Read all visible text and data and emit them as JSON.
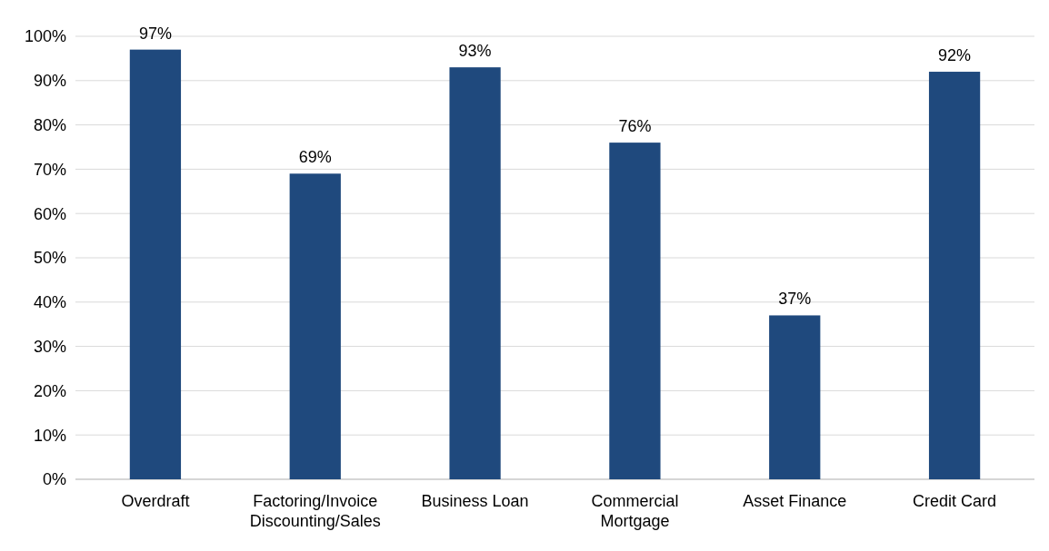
{
  "chart_data": {
    "type": "bar",
    "categories": [
      "Overdraft",
      "Factoring/Invoice Discounting/Sales",
      "Business Loan",
      "Commercial Mortgage",
      "Asset Finance",
      "Credit Card"
    ],
    "values": [
      97,
      69,
      93,
      76,
      37,
      92
    ],
    "value_labels": [
      "97%",
      "69%",
      "93%",
      "76%",
      "37%",
      "92%"
    ],
    "color": "#1f497d",
    "ylim": [
      0,
      100
    ],
    "yticks": [
      {
        "value": 0,
        "label": "0%"
      },
      {
        "value": 10,
        "label": "10%"
      },
      {
        "value": 20,
        "label": "20%"
      },
      {
        "value": 30,
        "label": "30%"
      },
      {
        "value": 40,
        "label": "40%"
      },
      {
        "value": 50,
        "label": "50%"
      },
      {
        "value": 60,
        "label": "60%"
      },
      {
        "value": 70,
        "label": "70%"
      },
      {
        "value": 80,
        "label": "80%"
      },
      {
        "value": 90,
        "label": "90%"
      },
      {
        "value": 100,
        "label": "100%"
      }
    ],
    "grid": "y"
  }
}
